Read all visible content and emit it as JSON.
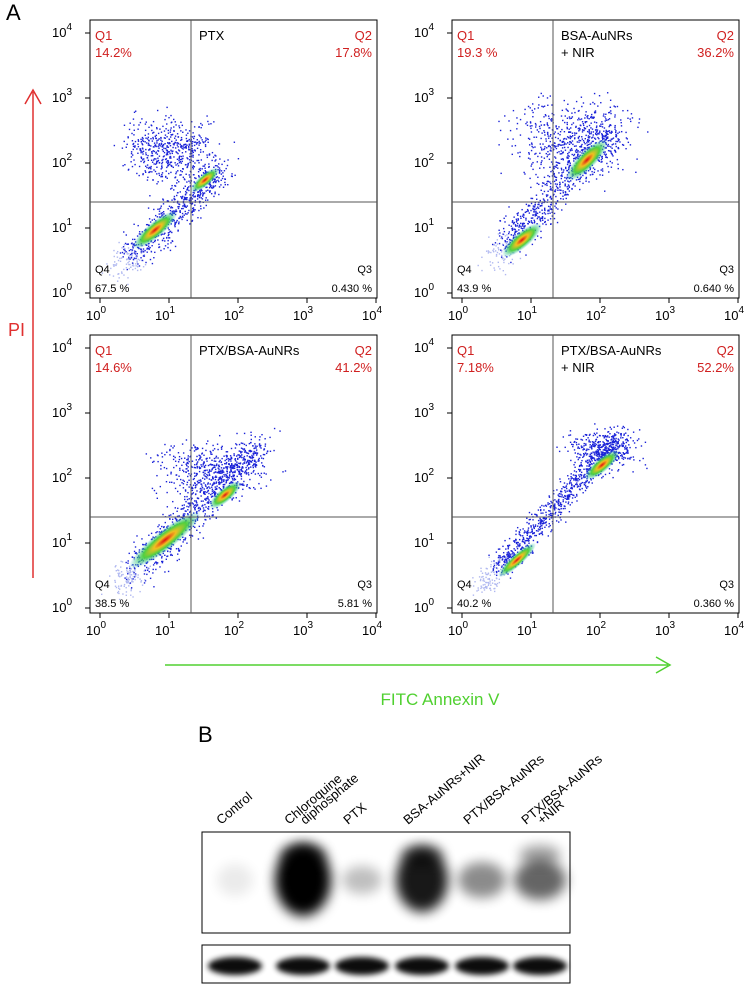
{
  "panel_a": {
    "label": "A",
    "y_axis_label": "PI",
    "x_axis_label": "FITC Annexin V",
    "tick_base": "10",
    "tick_exponents": [
      "0",
      "1",
      "2",
      "3",
      "4"
    ],
    "plots": [
      {
        "title": [
          "PTX"
        ],
        "q1": "Q1",
        "q1_value": "14.2%",
        "q2": "Q2",
        "q2_value": "17.8%",
        "q3": "Q3",
        "q3_value": "0.430 %",
        "q4": "Q4",
        "q4_value": "67.5 %"
      },
      {
        "title": [
          "BSA-AuNRs",
          "+ NIR"
        ],
        "q1": "Q1",
        "q1_value": "19.3 %",
        "q2": "Q2",
        "q2_value": "36.2%",
        "q3": "Q3",
        "q3_value": "0.640 %",
        "q4": "Q4",
        "q4_value": "43.9 %"
      },
      {
        "title": [
          "PTX/BSA-AuNRs"
        ],
        "q1": "Q1",
        "q1_value": "14.6%",
        "q2": "Q2",
        "q2_value": "41.2%",
        "q3": "Q3",
        "q3_value": "5.81 %",
        "q4": "Q4",
        "q4_value": "38.5 %"
      },
      {
        "title": [
          "PTX/BSA-AuNRs",
          "+ NIR"
        ],
        "q1": "Q1",
        "q1_value": "7.18%",
        "q2": "Q2",
        "q2_value": "52.2%",
        "q3": "Q3",
        "q3_value": "0.360 %",
        "q4": "Q4",
        "q4_value": "40.2 %"
      }
    ]
  },
  "panel_b": {
    "label": "B",
    "lanes": [
      [
        "Control"
      ],
      [
        "Chloroquine",
        "diphosphate"
      ],
      [
        "PTX"
      ],
      [
        "BSA-AuNRs+NIR"
      ],
      [
        "PTX/BSA-AuNRs"
      ],
      [
        "PTX/BSA-AuNRs",
        "+NIR"
      ]
    ]
  }
}
